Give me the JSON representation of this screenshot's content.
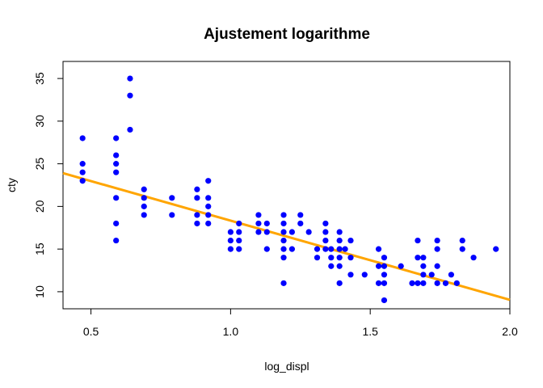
{
  "chart_data": {
    "type": "scatter",
    "title": "Ajustement logarithme",
    "xlabel": "log_displ",
    "ylabel": "cty",
    "xlim": [
      0.4,
      2.0
    ],
    "ylim": [
      8,
      37
    ],
    "x_ticks": [
      0.5,
      1.0,
      1.5,
      2.0
    ],
    "x_tick_labels": [
      "0.5",
      "1.0",
      "1.5",
      "2.0"
    ],
    "y_ticks": [
      10,
      15,
      20,
      25,
      30,
      35
    ],
    "y_tick_labels": [
      "10",
      "15",
      "20",
      "25",
      "30",
      "35"
    ],
    "grid": false,
    "point_color": "#0000FF",
    "line_color": "#FFA500",
    "points": [
      [
        0.47,
        23
      ],
      [
        0.47,
        24
      ],
      [
        0.47,
        25
      ],
      [
        0.47,
        28
      ],
      [
        0.59,
        16
      ],
      [
        0.59,
        18
      ],
      [
        0.59,
        21
      ],
      [
        0.59,
        24
      ],
      [
        0.59,
        25
      ],
      [
        0.59,
        26
      ],
      [
        0.59,
        28
      ],
      [
        0.64,
        29
      ],
      [
        0.64,
        33
      ],
      [
        0.64,
        35
      ],
      [
        0.69,
        19
      ],
      [
        0.69,
        20
      ],
      [
        0.69,
        21
      ],
      [
        0.69,
        22
      ],
      [
        0.79,
        19
      ],
      [
        0.79,
        21
      ],
      [
        0.88,
        18
      ],
      [
        0.88,
        19
      ],
      [
        0.88,
        21
      ],
      [
        0.88,
        22
      ],
      [
        0.92,
        18
      ],
      [
        0.92,
        19
      ],
      [
        0.92,
        20
      ],
      [
        0.92,
        21
      ],
      [
        0.92,
        23
      ],
      [
        1.0,
        15
      ],
      [
        1.0,
        16
      ],
      [
        1.0,
        17
      ],
      [
        1.03,
        15
      ],
      [
        1.03,
        16
      ],
      [
        1.03,
        17
      ],
      [
        1.03,
        18
      ],
      [
        1.1,
        17
      ],
      [
        1.1,
        18
      ],
      [
        1.1,
        19
      ],
      [
        1.13,
        15
      ],
      [
        1.13,
        17
      ],
      [
        1.13,
        18
      ],
      [
        1.19,
        11
      ],
      [
        1.19,
        14
      ],
      [
        1.19,
        15
      ],
      [
        1.19,
        16
      ],
      [
        1.19,
        17
      ],
      [
        1.19,
        18
      ],
      [
        1.19,
        19
      ],
      [
        1.22,
        15
      ],
      [
        1.22,
        17
      ],
      [
        1.25,
        18
      ],
      [
        1.25,
        19
      ],
      [
        1.28,
        17
      ],
      [
        1.31,
        14
      ],
      [
        1.31,
        15
      ],
      [
        1.34,
        15
      ],
      [
        1.34,
        16
      ],
      [
        1.34,
        17
      ],
      [
        1.34,
        18
      ],
      [
        1.36,
        13
      ],
      [
        1.36,
        14
      ],
      [
        1.36,
        15
      ],
      [
        1.39,
        11
      ],
      [
        1.39,
        13
      ],
      [
        1.39,
        14
      ],
      [
        1.39,
        15
      ],
      [
        1.39,
        16
      ],
      [
        1.39,
        17
      ],
      [
        1.41,
        15
      ],
      [
        1.43,
        12
      ],
      [
        1.43,
        14
      ],
      [
        1.43,
        16
      ],
      [
        1.48,
        12
      ],
      [
        1.53,
        11
      ],
      [
        1.53,
        13
      ],
      [
        1.53,
        15
      ],
      [
        1.55,
        9
      ],
      [
        1.55,
        11
      ],
      [
        1.55,
        12
      ],
      [
        1.55,
        13
      ],
      [
        1.55,
        14
      ],
      [
        1.61,
        13
      ],
      [
        1.65,
        11
      ],
      [
        1.67,
        11
      ],
      [
        1.67,
        14
      ],
      [
        1.67,
        16
      ],
      [
        1.69,
        11
      ],
      [
        1.69,
        12
      ],
      [
        1.69,
        13
      ],
      [
        1.69,
        14
      ],
      [
        1.72,
        12
      ],
      [
        1.74,
        11
      ],
      [
        1.74,
        13
      ],
      [
        1.74,
        15
      ],
      [
        1.74,
        16
      ],
      [
        1.77,
        11
      ],
      [
        1.79,
        12
      ],
      [
        1.81,
        11
      ],
      [
        1.83,
        15
      ],
      [
        1.83,
        16
      ],
      [
        1.87,
        14
      ],
      [
        1.95,
        15
      ]
    ],
    "fit_line": {
      "x": [
        0.4,
        2.0
      ],
      "y": [
        23.9,
        9.05
      ]
    }
  }
}
